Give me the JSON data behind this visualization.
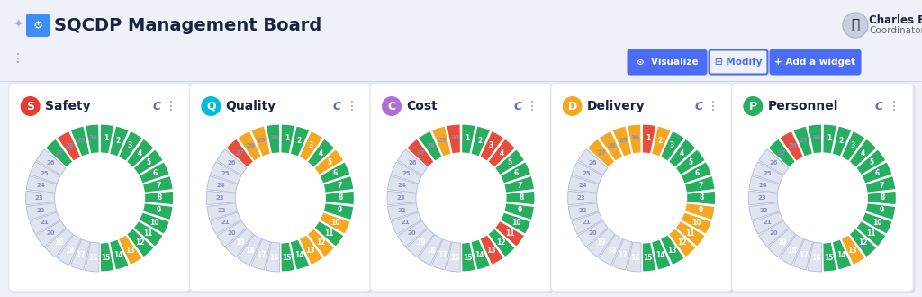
{
  "title": "SQCDP Management Board",
  "user_name": "Charles Bisson",
  "user_role": "Coordinator",
  "bg_color": "#eef1f8",
  "card_bg": "#ffffff",
  "kpis": [
    {
      "name": "Safety",
      "icon_color": "#e83a2f",
      "icon_letter": "S",
      "segment_colors": [
        "#27ae60",
        "#27ae60",
        "#f5a623",
        "#27ae60",
        "#27ae60",
        "#27ae60",
        "#27ae60",
        "#27ae60",
        "#27ae60",
        "#27ae60",
        "#27ae60",
        "#27ae60",
        "#27ae60",
        "#27ae60",
        "#27ae60",
        "#27ae60",
        "#27ae60",
        "#e74c3c",
        "#27ae60",
        "#e0e4ef",
        "#e0e4ef",
        "#e0e4ef",
        "#e0e4ef",
        "#e0e4ef",
        "#e0e4ef",
        "#e0e4ef",
        "#e0e4ef",
        "#e0e4ef",
        "#e0e4ef",
        "#e0e4ef"
      ]
    },
    {
      "name": "Quality",
      "icon_color": "#00bcd4",
      "icon_letter": "Q",
      "segment_colors": [
        "#27ae60",
        "#27ae60",
        "#f5a623",
        "#f5a623",
        "#27ae60",
        "#f5a623",
        "#27ae60",
        "#27ae60",
        "#27ae60",
        "#27ae60",
        "#f5a623",
        "#27ae60",
        "#f5a623",
        "#27ae60",
        "#27ae60",
        "#27ae60",
        "#f5a623",
        "#f5a623",
        "#e74c3c",
        "#e0e4ef",
        "#e0e4ef",
        "#e0e4ef",
        "#e0e4ef",
        "#e0e4ef",
        "#e0e4ef",
        "#e0e4ef",
        "#e0e4ef",
        "#e0e4ef",
        "#e0e4ef",
        "#e0e4ef"
      ]
    },
    {
      "name": "Cost",
      "icon_color": "#b06fd8",
      "icon_letter": "C",
      "segment_colors": [
        "#27ae60",
        "#27ae60",
        "#e74c3c",
        "#27ae60",
        "#e74c3c",
        "#27ae60",
        "#27ae60",
        "#27ae60",
        "#27ae60",
        "#27ae60",
        "#27ae60",
        "#e74c3c",
        "#e74c3c",
        "#27ae60",
        "#27ae60",
        "#e74c3c",
        "#f5a623",
        "#27ae60",
        "#e74c3c",
        "#e0e4ef",
        "#e0e4ef",
        "#e0e4ef",
        "#e0e4ef",
        "#e0e4ef",
        "#e0e4ef",
        "#e0e4ef",
        "#e0e4ef",
        "#e0e4ef",
        "#e0e4ef",
        "#e0e4ef"
      ]
    },
    {
      "name": "Delivery",
      "icon_color": "#f5a623",
      "icon_letter": "D",
      "segment_colors": [
        "#27ae60",
        "#27ae60",
        "#27ae60",
        "#f5a623",
        "#f5a623",
        "#f5a623",
        "#f5a623",
        "#27ae60",
        "#27ae60",
        "#27ae60",
        "#27ae60",
        "#27ae60",
        "#27ae60",
        "#f5a623",
        "#e74c3c",
        "#f5a623",
        "#f5a623",
        "#f5a623",
        "#f5a623",
        "#e0e4ef",
        "#e0e4ef",
        "#e0e4ef",
        "#e0e4ef",
        "#e0e4ef",
        "#e0e4ef",
        "#e0e4ef",
        "#e0e4ef",
        "#e0e4ef",
        "#e0e4ef",
        "#e0e4ef"
      ]
    },
    {
      "name": "Personnel",
      "icon_color": "#27ae60",
      "icon_letter": "P",
      "segment_colors": [
        "#27ae60",
        "#27ae60",
        "#f5a623",
        "#27ae60",
        "#27ae60",
        "#27ae60",
        "#27ae60",
        "#27ae60",
        "#27ae60",
        "#27ae60",
        "#27ae60",
        "#27ae60",
        "#27ae60",
        "#27ae60",
        "#27ae60",
        "#27ae60",
        "#27ae60",
        "#e74c3c",
        "#27ae60",
        "#e0e4ef",
        "#e0e4ef",
        "#e0e4ef",
        "#e0e4ef",
        "#e0e4ef",
        "#e0e4ef",
        "#e0e4ef",
        "#e0e4ef",
        "#e0e4ef",
        "#e0e4ef",
        "#e0e4ef"
      ]
    }
  ],
  "n_segments": 30,
  "gray_border_color": "#b0b8d8",
  "colored_border_color": "#ffffff"
}
